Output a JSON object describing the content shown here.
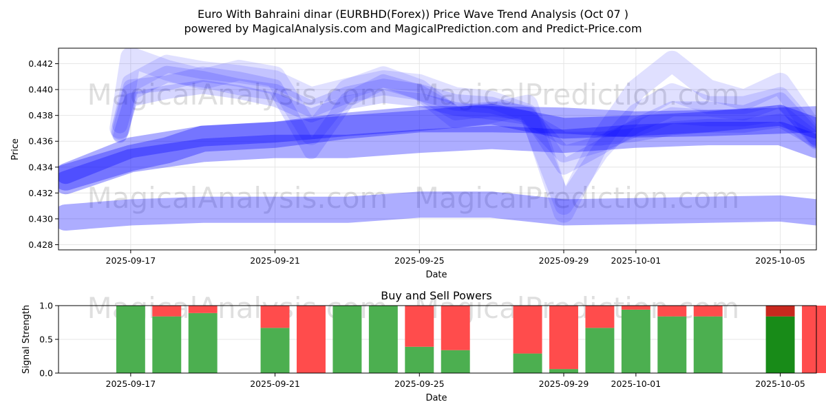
{
  "title": {
    "line1": "Euro With Bahraini dinar (EURBHD(Forex)) Price Wave Trend Analysis (Oct 07 )",
    "line2": "powered by MagicalAnalysis.com and MagicalPrediction.com and Predict-Price.com"
  },
  "watermarks": [
    "MagicalAnalysis.com",
    "MagicalPrediction.com"
  ],
  "colors": {
    "band": "#0000ff",
    "buy": "#4caf50",
    "buy_dark": "#188b18",
    "sell": "#ff4c4c",
    "sell_dark": "#c8281e",
    "grid": "#e6e6e6"
  },
  "chart_data": [
    {
      "type": "area",
      "title": "",
      "xlabel": "Date",
      "ylabel": "Price",
      "xlim": [
        -1.0,
        20.0
      ],
      "ylim": [
        0.4276,
        0.4432
      ],
      "xticks": [
        {
          "day": 1,
          "label": "2025-09-17"
        },
        {
          "day": 5,
          "label": "2025-09-21"
        },
        {
          "day": 9,
          "label": "2025-09-25"
        },
        {
          "day": 13,
          "label": "2025-09-29"
        },
        {
          "day": 15,
          "label": "2025-10-01"
        },
        {
          "day": 19,
          "label": "2025-10-05"
        }
      ],
      "yticks": [
        0.428,
        0.43,
        0.432,
        0.434,
        0.436,
        0.438,
        0.44,
        0.442
      ],
      "grid": true,
      "series": [
        {
          "name": "wave-lower",
          "x": [
            -0.8,
            1,
            3,
            5,
            7,
            9,
            11,
            13,
            15,
            17,
            19,
            20.0
          ],
          "y": [
            0.4301,
            0.4305,
            0.4307,
            0.4307,
            0.4307,
            0.4311,
            0.4311,
            0.4305,
            0.4306,
            0.4307,
            0.4308,
            0.4305
          ],
          "opacity": 0.32,
          "width": 38
        },
        {
          "name": "wave-trend-a",
          "x": [
            -0.8,
            1,
            2,
            3,
            5,
            7,
            9,
            11,
            13,
            15,
            17,
            19,
            20.0
          ],
          "y": [
            0.4332,
            0.4347,
            0.4353,
            0.4362,
            0.4365,
            0.4372,
            0.4377,
            0.4377,
            0.4376,
            0.4373,
            0.4374,
            0.4376,
            0.4377
          ],
          "opacity": 0.32,
          "width": 38
        },
        {
          "name": "wave-trend-b",
          "x": [
            -0.8,
            1,
            3,
            5,
            7,
            9,
            11,
            13,
            15,
            17,
            19,
            20.0
          ],
          "y": [
            0.4328,
            0.4345,
            0.4353,
            0.4356,
            0.4356,
            0.436,
            0.4363,
            0.436,
            0.4364,
            0.4366,
            0.4366,
            0.4356
          ],
          "opacity": 0.32,
          "width": 34
        },
        {
          "name": "wave-upper",
          "x": [
            -0.8,
            1,
            3,
            5,
            7,
            9,
            11,
            13,
            15,
            17,
            19,
            20.0
          ],
          "y": [
            0.4335,
            0.4355,
            0.4364,
            0.4367,
            0.4372,
            0.4376,
            0.4381,
            0.437,
            0.4372,
            0.4375,
            0.438,
            0.437
          ],
          "opacity": 0.32,
          "width": 30
        },
        {
          "name": "wave-swing-1",
          "x": [
            0.7,
            1,
            2,
            3,
            4,
            5,
            6,
            7,
            8,
            9,
            10,
            11,
            12,
            13,
            14,
            15,
            16,
            17,
            18,
            19,
            20.0
          ],
          "y": [
            0.437,
            0.4425,
            0.4415,
            0.4408,
            0.4415,
            0.441,
            0.4365,
            0.44,
            0.441,
            0.44,
            0.4378,
            0.4382,
            0.4388,
            0.4305,
            0.436,
            0.44,
            0.4422,
            0.44,
            0.4392,
            0.4405,
            0.4365
          ],
          "opacity": 0.12,
          "width": 30
        },
        {
          "name": "wave-swing-2",
          "x": [
            0.7,
            1,
            2,
            3,
            4,
            5,
            6,
            7,
            8,
            9,
            10,
            11,
            12,
            13,
            14,
            15,
            16,
            17,
            18,
            19,
            20.0
          ],
          "y": [
            0.4368,
            0.4405,
            0.442,
            0.4415,
            0.4412,
            0.4408,
            0.4395,
            0.4402,
            0.4408,
            0.4405,
            0.4395,
            0.4392,
            0.4382,
            0.431,
            0.4352,
            0.4382,
            0.4398,
            0.4388,
            0.4388,
            0.4395,
            0.4362
          ],
          "opacity": 0.12,
          "width": 26
        },
        {
          "name": "wave-swing-3",
          "x": [
            0.7,
            1,
            2,
            3,
            4,
            5,
            6,
            7,
            8,
            9,
            10,
            11,
            12,
            13,
            14,
            15,
            16,
            17,
            18,
            19,
            20.0
          ],
          "y": [
            0.4366,
            0.4398,
            0.4412,
            0.4408,
            0.4402,
            0.4398,
            0.4385,
            0.4396,
            0.4402,
            0.4398,
            0.439,
            0.4388,
            0.438,
            0.435,
            0.4358,
            0.437,
            0.438,
            0.4378,
            0.4378,
            0.4382,
            0.436
          ],
          "opacity": 0.14,
          "width": 24
        },
        {
          "name": "wave-swing-4",
          "x": [
            0.7,
            1,
            2,
            3,
            4,
            5,
            6,
            7,
            8,
            9,
            10,
            11,
            12,
            13,
            14,
            15,
            16,
            17,
            18,
            19,
            20.0
          ],
          "y": [
            0.4372,
            0.4402,
            0.4405,
            0.4412,
            0.4408,
            0.4402,
            0.4352,
            0.4392,
            0.4406,
            0.4398,
            0.4382,
            0.4385,
            0.4382,
            0.434,
            0.4355,
            0.4372,
            0.4385,
            0.4385,
            0.4382,
            0.4392,
            0.4362
          ],
          "opacity": 0.14,
          "width": 22
        },
        {
          "name": "wave-swing-5",
          "x": [
            0.7,
            1,
            2,
            3,
            4,
            5,
            6,
            7,
            8,
            9,
            10,
            11,
            12,
            13,
            14,
            15,
            16,
            17,
            18,
            19,
            20.0
          ],
          "y": [
            0.4364,
            0.4392,
            0.4398,
            0.4402,
            0.4398,
            0.4392,
            0.438,
            0.439,
            0.4395,
            0.4392,
            0.4385,
            0.4382,
            0.4378,
            0.4362,
            0.4362,
            0.4365,
            0.437,
            0.4372,
            0.4372,
            0.4376,
            0.436
          ],
          "opacity": 0.16,
          "width": 20
        }
      ]
    },
    {
      "type": "bar",
      "title": "Buy and Sell Powers",
      "xlabel": "Date",
      "ylabel": "Signal Strength",
      "xlim": [
        -1.0,
        20.0
      ],
      "ylim": [
        0.0,
        1.0
      ],
      "xticks": [
        {
          "day": 1,
          "label": "2025-09-17"
        },
        {
          "day": 5,
          "label": "2025-09-21"
        },
        {
          "day": 9,
          "label": "2025-09-25"
        },
        {
          "day": 13,
          "label": "2025-09-29"
        },
        {
          "day": 15,
          "label": "2025-10-01"
        },
        {
          "day": 19,
          "label": "2025-10-05"
        }
      ],
      "yticks": [
        0.0,
        0.5,
        1.0
      ],
      "ytick_labels": [
        "0.0",
        "0.5",
        "1.0"
      ],
      "grid": true,
      "bars": [
        {
          "day": 1,
          "buy": 1.0,
          "sell": 0.0
        },
        {
          "day": 2,
          "buy": 0.84,
          "sell": 0.16
        },
        {
          "day": 3,
          "buy": 0.89,
          "sell": 0.11
        },
        {
          "day": 5,
          "buy": 0.67,
          "sell": 0.33
        },
        {
          "day": 6,
          "buy": 0.0,
          "sell": 1.0
        },
        {
          "day": 7,
          "buy": 1.0,
          "sell": 0.0
        },
        {
          "day": 8,
          "buy": 1.0,
          "sell": 0.0
        },
        {
          "day": 9,
          "buy": 0.39,
          "sell": 0.61
        },
        {
          "day": 10,
          "buy": 0.34,
          "sell": 0.66
        },
        {
          "day": 12,
          "buy": 0.29,
          "sell": 0.71
        },
        {
          "day": 13,
          "buy": 0.06,
          "sell": 0.94
        },
        {
          "day": 14,
          "buy": 0.67,
          "sell": 0.33
        },
        {
          "day": 15,
          "buy": 0.94,
          "sell": 0.06
        },
        {
          "day": 16,
          "buy": 0.84,
          "sell": 0.16
        },
        {
          "day": 17,
          "buy": 0.84,
          "sell": 0.16
        },
        {
          "day": 19,
          "buy": 0.84,
          "sell": 0.16,
          "highlight": true
        },
        {
          "day": 20,
          "buy": 0.0,
          "sell": 1.0
        }
      ]
    }
  ]
}
